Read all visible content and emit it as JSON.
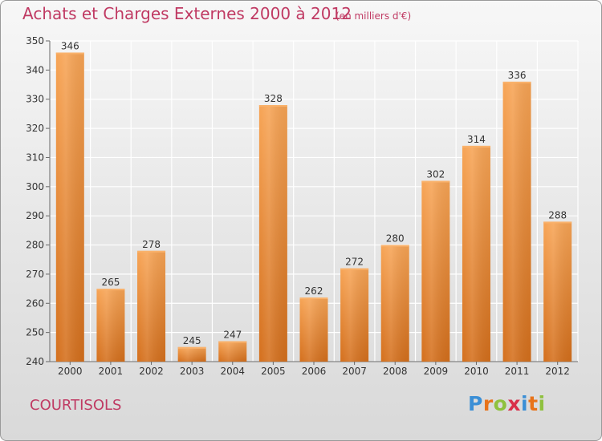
{
  "header": {
    "title": "Achats et Charges Externes 2000 à 2012",
    "subtitle": "(en milliers d'€)"
  },
  "footer": {
    "commune": "COURTISOLS",
    "logo": [
      "P",
      "r",
      "o",
      "x",
      "i",
      "t",
      "i"
    ],
    "logo_colors": [
      "#3b8fd6",
      "#e8731a",
      "#8fc13e",
      "#d9304a",
      "#3b8fd6",
      "#e8731a",
      "#8fc13e"
    ]
  },
  "chart_data": {
    "type": "bar",
    "title": "Achats et Charges Externes 2000 à 2012",
    "subtitle": "(en milliers d'€)",
    "categories": [
      "2000",
      "2001",
      "2002",
      "2003",
      "2004",
      "2005",
      "2006",
      "2007",
      "2008",
      "2009",
      "2010",
      "2011",
      "2012"
    ],
    "values": [
      346,
      265,
      278,
      245,
      247,
      328,
      262,
      272,
      280,
      302,
      314,
      336,
      288
    ],
    "ylim": [
      240,
      350
    ],
    "yticks": [
      240,
      250,
      260,
      270,
      280,
      290,
      300,
      310,
      320,
      330,
      340,
      350
    ],
    "grid": true,
    "bar_color": "#f0943f",
    "bar_color_dark": "#d9731f"
  }
}
